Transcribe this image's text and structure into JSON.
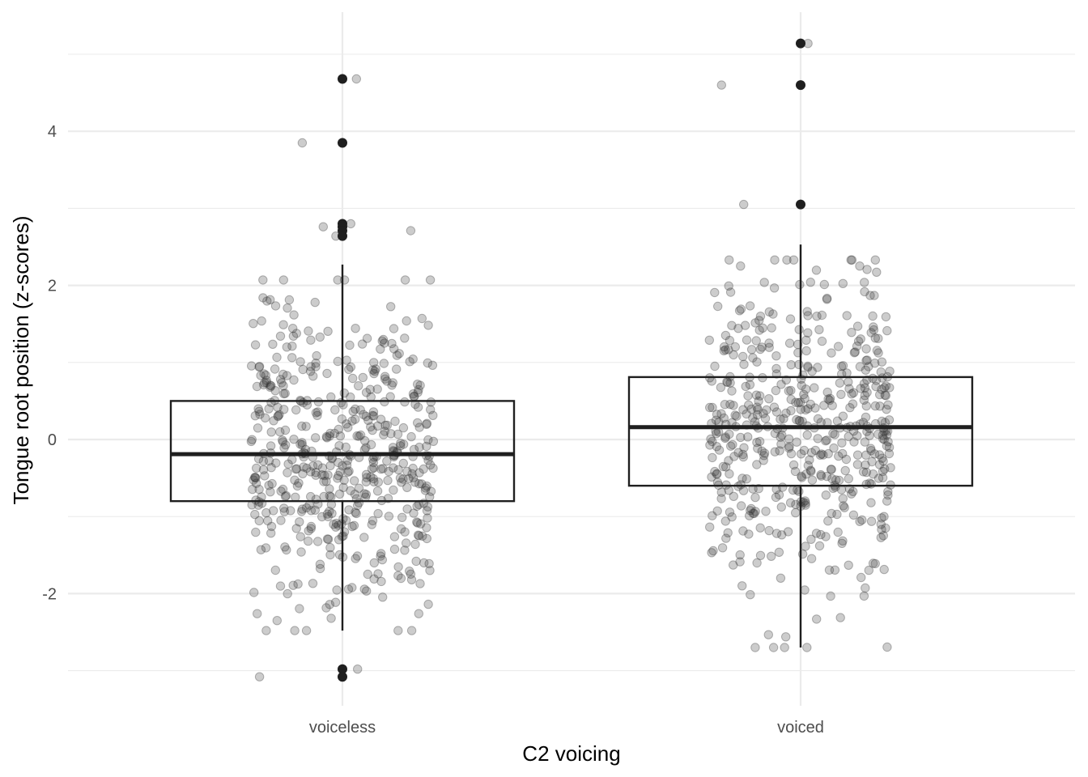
{
  "chart_data": {
    "type": "box",
    "title": "",
    "xlabel": "C2 voicing",
    "ylabel": "Tongue root position (z-scores)",
    "categories": [
      "voiceless",
      "voiced"
    ],
    "ylim": [
      -3.5,
      5.6
    ],
    "yticks": [
      -2,
      0,
      2,
      4
    ],
    "ytick_labels": [
      "-2",
      "0",
      "2",
      "4"
    ],
    "grid": true,
    "legend": "none",
    "boxes": [
      {
        "category": "voiceless",
        "whisker_low": -2.48,
        "q1": -0.8,
        "median": -0.19,
        "q3": 0.5,
        "whisker_high": 2.27,
        "outliers": [
          4.68,
          3.85,
          2.8,
          2.76,
          2.71,
          2.64,
          -2.98,
          -3.08
        ]
      },
      {
        "category": "voiced",
        "whisker_low": -2.7,
        "q1": -0.6,
        "median": 0.16,
        "q3": 0.81,
        "whisker_high": 2.53,
        "outliers": [
          5.14,
          4.6,
          3.05
        ]
      }
    ],
    "jitter_points": {
      "count_per_group": 520,
      "sd": 0.98,
      "alpha": 0.25
    },
    "colors": {
      "box_stroke": "#1f1f1f",
      "outlier": "#1f1f1f",
      "jitter": "#333333",
      "grid": "#ebebeb",
      "background": "#ffffff"
    }
  }
}
